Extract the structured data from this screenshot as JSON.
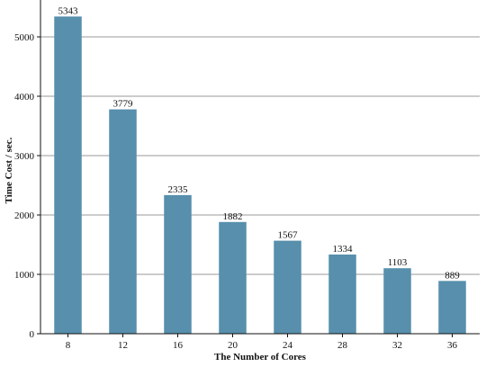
{
  "chart_data": {
    "type": "bar",
    "categories": [
      "8",
      "12",
      "16",
      "20",
      "24",
      "28",
      "32",
      "36"
    ],
    "values": [
      5343,
      3779,
      2335,
      1882,
      1567,
      1334,
      1103,
      889
    ],
    "xlabel": "The Number of Cores",
    "ylabel": "Time Cost / sec.",
    "ylim": [
      0,
      5500
    ],
    "yticks": [
      0,
      1000,
      2000,
      3000,
      4000,
      5000
    ],
    "grid": "horizontal",
    "data_labels": true,
    "bar_color": "#578fac",
    "grid_color": "#9a9a9a"
  }
}
